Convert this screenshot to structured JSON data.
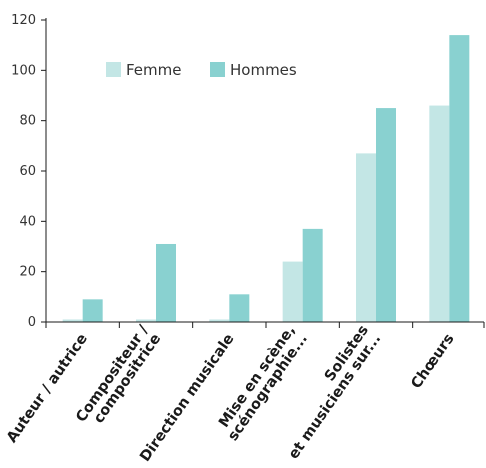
{
  "chart_data": {
    "type": "bar",
    "categories": [
      [
        "Auteur / autrice"
      ],
      [
        "Compositeur /",
        "compositrice"
      ],
      [
        "Direction musicale"
      ],
      [
        "Mise en scène,",
        "scénographie..."
      ],
      [
        "Solistes",
        "et musiciens sur..."
      ],
      [
        "Chœurs"
      ]
    ],
    "series": [
      {
        "name": "Femme",
        "color": "#c3e6e5",
        "values": [
          1,
          1,
          1,
          24,
          67,
          86
        ]
      },
      {
        "name": "Hommes",
        "color": "#89d1d0",
        "values": [
          9,
          31,
          11,
          37,
          85,
          114
        ]
      }
    ],
    "ylim": [
      0,
      120
    ],
    "yticks": [
      0,
      20,
      40,
      60,
      80,
      100,
      120
    ],
    "legend_position": "top-left-inside",
    "axis_color": "#1a1a1a",
    "grid": false
  }
}
